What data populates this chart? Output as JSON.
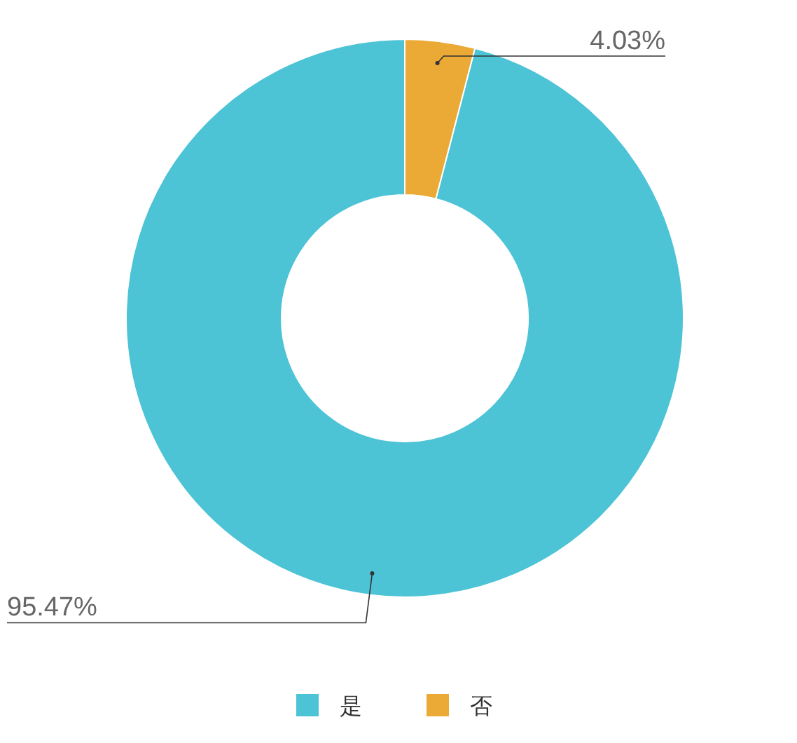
{
  "chart_data": {
    "type": "donut",
    "categories": [
      "是",
      "否"
    ],
    "values": [
      95.47,
      4.03
    ],
    "colors": [
      "#4dc3d6",
      "#eba935"
    ],
    "value_labels": [
      "95.47%",
      "4.03%"
    ],
    "legend": "bottom"
  }
}
